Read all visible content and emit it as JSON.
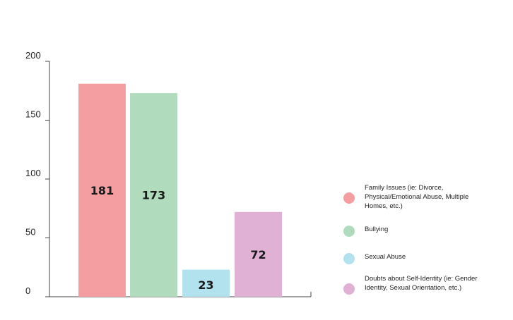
{
  "chart_data": {
    "type": "bar",
    "title": "",
    "xlabel": "",
    "ylabel": "",
    "ylim": [
      0,
      200
    ],
    "yticks": [
      0,
      50,
      100,
      150,
      200
    ],
    "grid": false,
    "legend_position": "right",
    "categories": [
      "Family Issues (ie: Divorce, Physical/Emotional Abuse, Multiple Homes, etc.)",
      "Bullying",
      "Sexual Abuse",
      "Doubts about Self-Identity (ie: Gender Identity, Sexual Orientation, etc.)"
    ],
    "values": [
      181,
      173,
      23,
      72
    ],
    "colors": [
      "#f59ea1",
      "#b0dcbd",
      "#b1e2ee",
      "#e0b0d5"
    ]
  }
}
